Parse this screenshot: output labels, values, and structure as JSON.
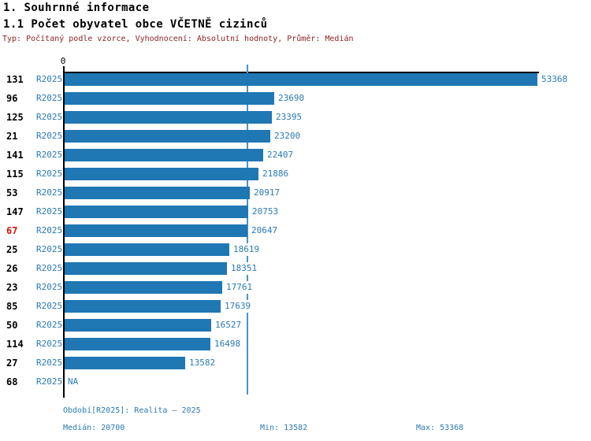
{
  "header": {
    "section_title": "1. Souhrnné informace",
    "indicator_title": "1.1 Počet obyvatel obce VČETNĚ cizinců",
    "settings_line": "Typ: Počítaný podle vzorce, Vyhodnocení: Absolutní hodnoty, Průměr: Medián"
  },
  "chart_data": {
    "type": "bar",
    "orientation": "horizontal",
    "title": "1.1 Počet obyvatel obce VČETNĚ cizinců",
    "series_label": "R2025",
    "x_axis": {
      "zero_label": "0",
      "min": 0,
      "max": 53368,
      "gridlines": false
    },
    "median_value": 20700,
    "categories": [
      "131",
      "96",
      "125",
      "21",
      "141",
      "115",
      "53",
      "147",
      "67",
      "25",
      "26",
      "23",
      "85",
      "50",
      "114",
      "27",
      "68"
    ],
    "rows": [
      {
        "id": "131",
        "period": "R2025",
        "value": 53368,
        "label": "53368",
        "highlight": false
      },
      {
        "id": "96",
        "period": "R2025",
        "value": 23690,
        "label": "23690",
        "highlight": false
      },
      {
        "id": "125",
        "period": "R2025",
        "value": 23395,
        "label": "23395",
        "highlight": false
      },
      {
        "id": "21",
        "period": "R2025",
        "value": 23200,
        "label": "23200",
        "highlight": false
      },
      {
        "id": "141",
        "period": "R2025",
        "value": 22407,
        "label": "22407",
        "highlight": false
      },
      {
        "id": "115",
        "period": "R2025",
        "value": 21886,
        "label": "21886",
        "highlight": false
      },
      {
        "id": "53",
        "period": "R2025",
        "value": 20917,
        "label": "20917",
        "highlight": false
      },
      {
        "id": "147",
        "period": "R2025",
        "value": 20753,
        "label": "20753",
        "highlight": false
      },
      {
        "id": "67",
        "period": "R2025",
        "value": 20647,
        "label": "20647",
        "highlight": true
      },
      {
        "id": "25",
        "period": "R2025",
        "value": 18619,
        "label": "18619",
        "highlight": false
      },
      {
        "id": "26",
        "period": "R2025",
        "value": 18351,
        "label": "18351",
        "highlight": false
      },
      {
        "id": "23",
        "period": "R2025",
        "value": 17761,
        "label": "17761",
        "highlight": false
      },
      {
        "id": "85",
        "period": "R2025",
        "value": 17639,
        "label": "17639",
        "highlight": false
      },
      {
        "id": "50",
        "period": "R2025",
        "value": 16527,
        "label": "16527",
        "highlight": false
      },
      {
        "id": "114",
        "period": "R2025",
        "value": 16498,
        "label": "16498",
        "highlight": false
      },
      {
        "id": "27",
        "period": "R2025",
        "value": 13582,
        "label": "13582",
        "highlight": false
      },
      {
        "id": "68",
        "period": "R2025",
        "value": null,
        "label": "NA",
        "highlight": false
      }
    ],
    "colors": {
      "bar": "#1f77b4",
      "blue_text": "#2a7ab5",
      "median_line": "#4a94c6",
      "highlight_id": "#dd1111",
      "subtitle": "#8f1f1f"
    }
  },
  "footer": {
    "period_line": "Období[R2025]: Realita – 2025",
    "median_label": "Medián: 20700",
    "min_label": "Min: 13582",
    "max_label": "Max: 53368"
  }
}
